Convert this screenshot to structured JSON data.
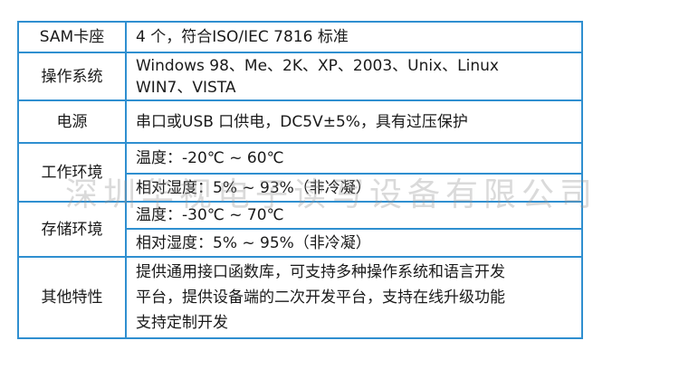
{
  "table": {
    "rows": [
      {
        "label": "SAM卡座",
        "values": [
          "4 个，符合ISO/IEC 7816 标准"
        ]
      },
      {
        "label": "操作系统",
        "values": [
          "Windows 98、Me、2K、XP、2003、Unix、Linux",
          "WIN7、VISTA"
        ]
      },
      {
        "label": "电源",
        "values": [
          "串口或USB 口供电，DC5V±5%，具有过压保护"
        ]
      },
      {
        "label": "工作环境",
        "values": [
          "温度：-20℃ ~ 60℃",
          "相对湿度：5% ~ 93%（非冷凝）"
        ]
      },
      {
        "label": "存储环境",
        "values": [
          "温度：-30℃ ~ 70℃",
          "相对湿度：5% ~ 95%（非冷凝）"
        ]
      },
      {
        "label": "其他特性",
        "values": [
          "提供通用接口函数库，可支持多种操作系统和语言开发",
          "平台，提供设备端的二次开发平台，支持在线升级功能",
          "支持定制开发"
        ]
      }
    ]
  },
  "watermark": "深圳华视电子读写设备有限公司",
  "colors": {
    "border": "#2f8fd0",
    "text": "#1a1a1a"
  }
}
